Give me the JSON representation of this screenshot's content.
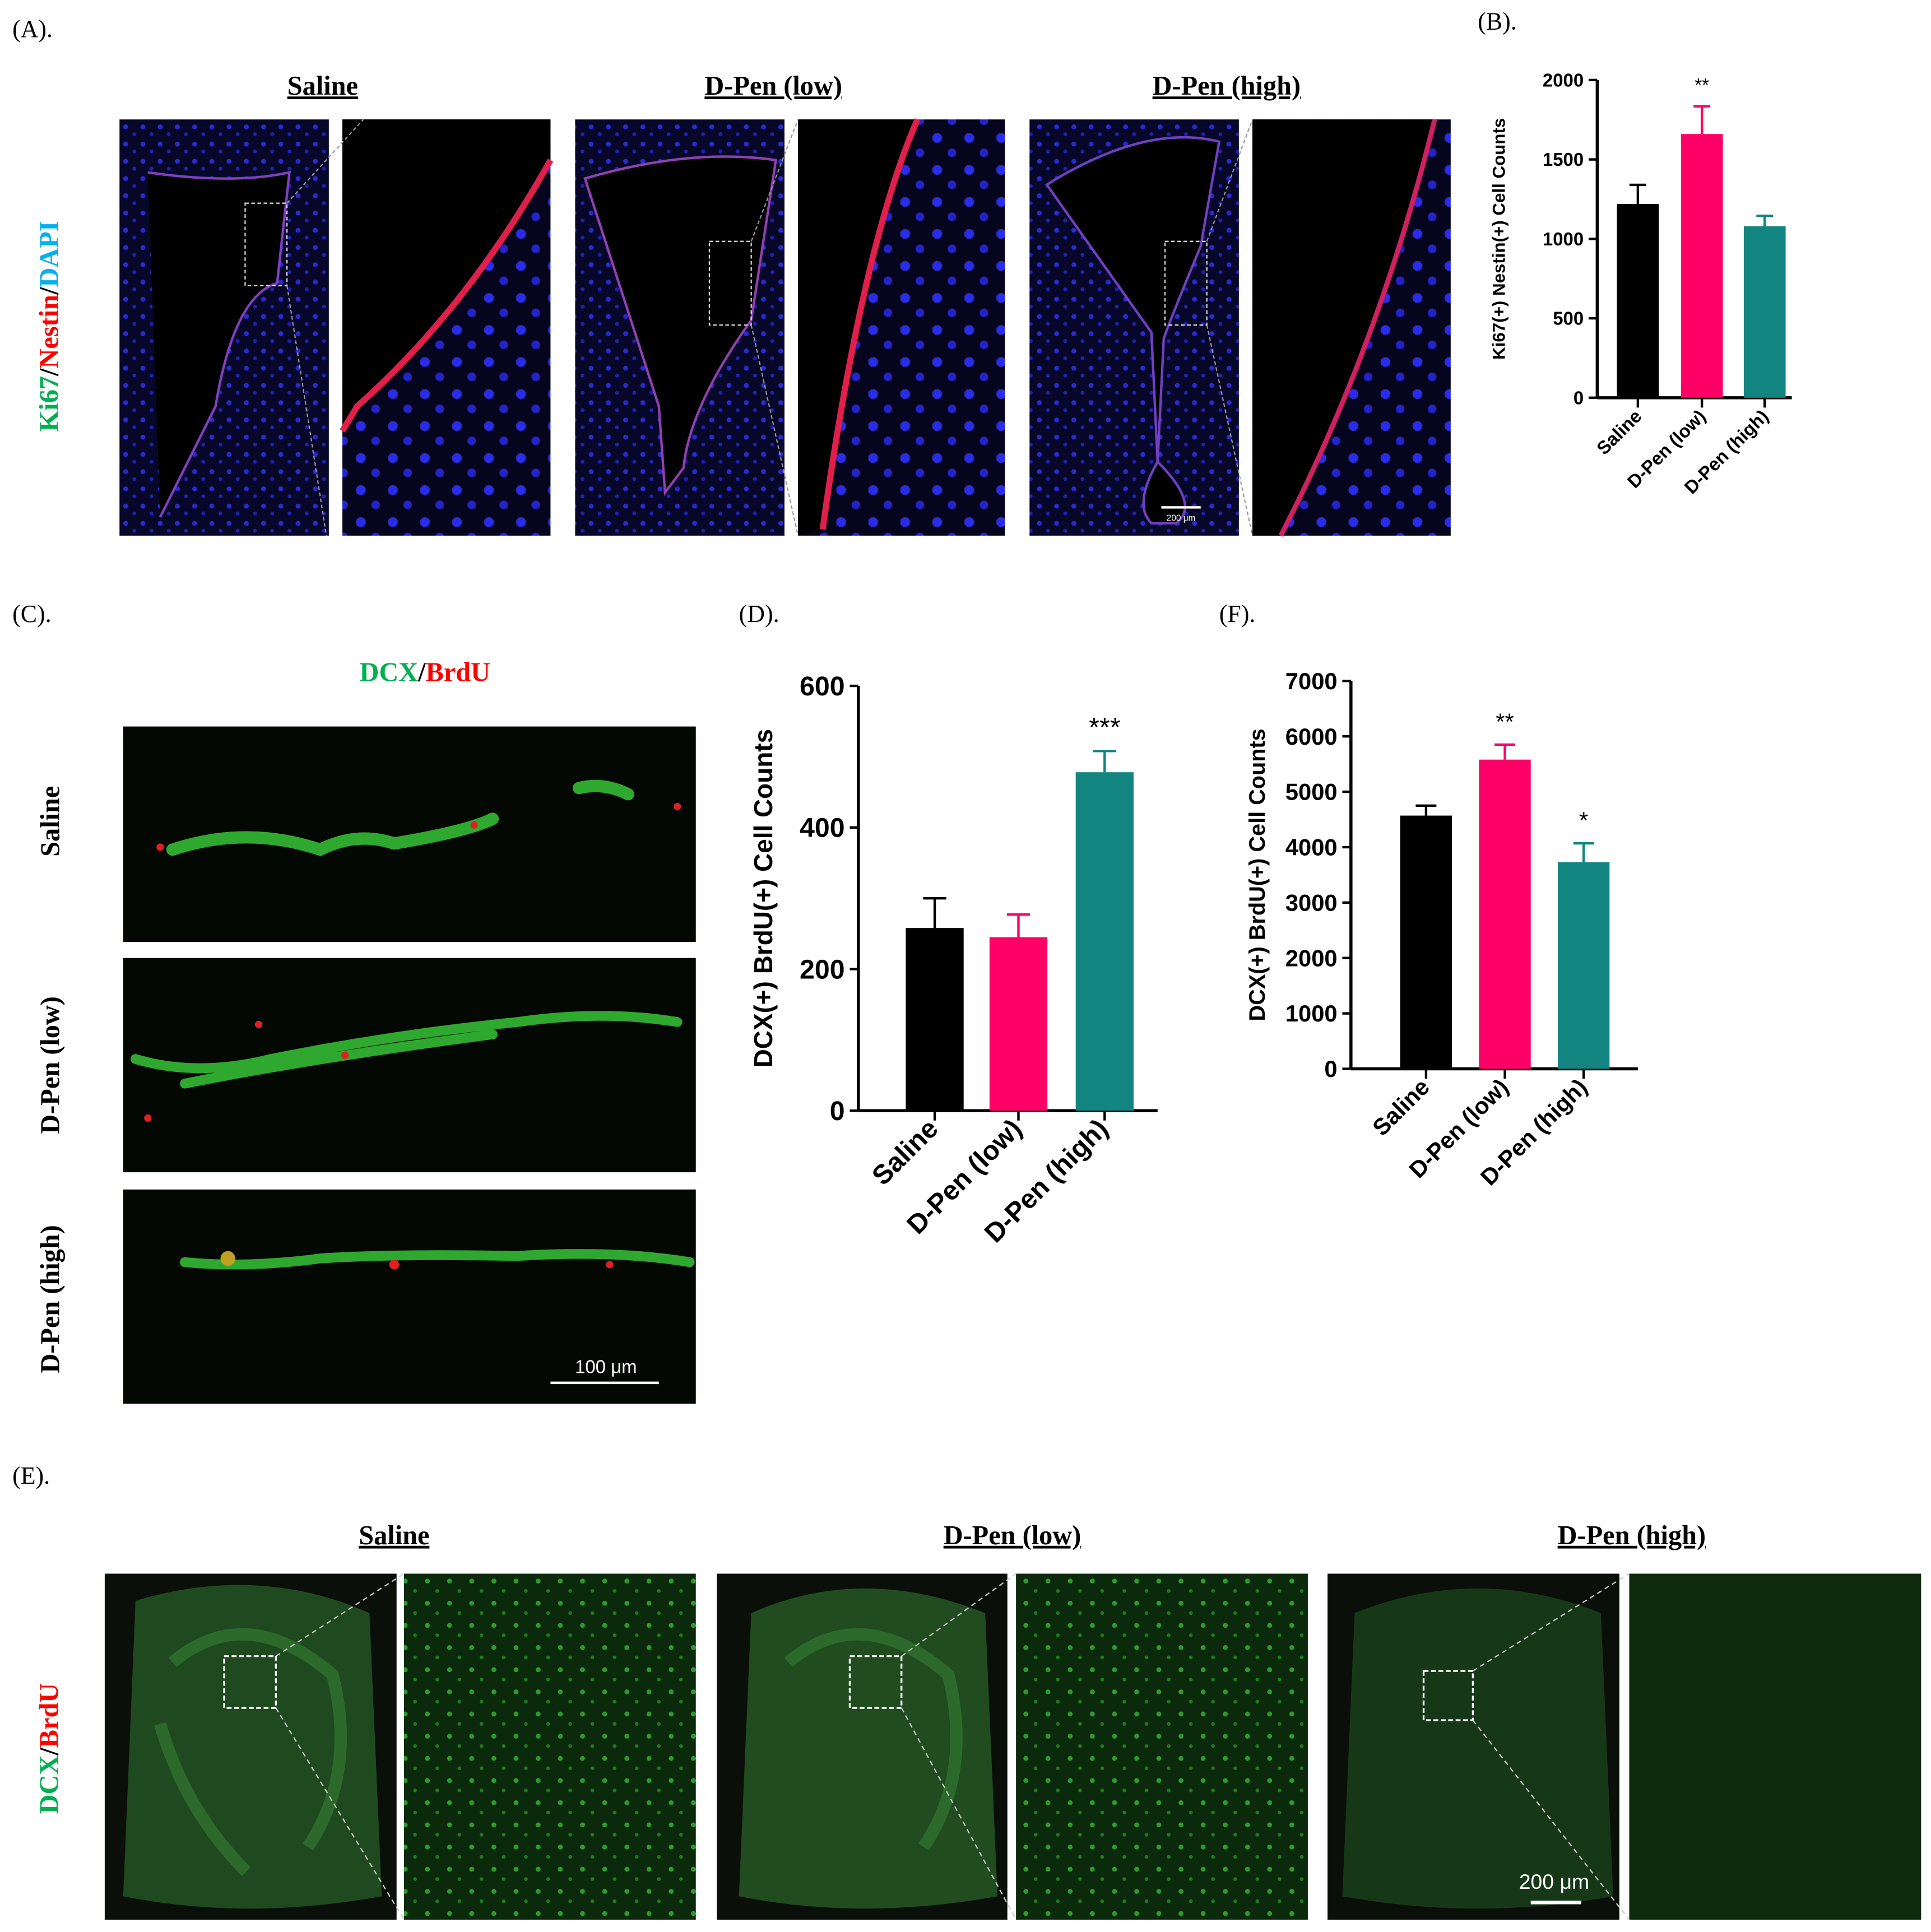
{
  "chart_data": [
    {
      "type": "bar",
      "y_label": "Ki67(+) Nestin(+) Cell Counts",
      "categories": [
        "Saline",
        "D-Pen (low)",
        "D-Pen (high)"
      ],
      "values": [
        1220,
        1660,
        1080
      ],
      "errors": [
        120,
        175,
        65
      ],
      "colors": [
        "#000000",
        "#ff0066",
        "#138580"
      ],
      "annotations": [
        null,
        "**",
        null
      ],
      "ylim": [
        0,
        2000
      ],
      "yticks": [
        0,
        500,
        1000,
        1500,
        2000
      ]
    },
    {
      "type": "bar",
      "y_label": "DCX(+) BrdU(+) Cell Counts",
      "categories": [
        "Saline",
        "D-Pen (low)",
        "D-Pen (high)"
      ],
      "values": [
        258,
        245,
        478
      ],
      "errors": [
        42,
        32,
        30
      ],
      "colors": [
        "#000000",
        "#ff0066",
        "#138580"
      ],
      "annotations": [
        null,
        null,
        "***"
      ],
      "ylim": [
        0,
        600
      ],
      "yticks": [
        0,
        200,
        400,
        600
      ]
    },
    {
      "type": "bar",
      "y_label": "DCX(+) BrdU(+) Cell  Counts",
      "categories": [
        "Saline",
        "D-Pen (low)",
        "D-Pen (high)"
      ],
      "values": [
        4570,
        5580,
        3730
      ],
      "errors": [
        180,
        270,
        340
      ],
      "colors": [
        "#000000",
        "#ff0066",
        "#138580"
      ],
      "annotations": [
        null,
        "**",
        "*"
      ],
      "ylim": [
        0,
        7000
      ],
      "yticks": [
        0,
        1000,
        2000,
        3000,
        4000,
        5000,
        6000,
        7000
      ]
    }
  ],
  "figure": {
    "panel_labels": [
      "(A).",
      "(B).",
      "(C).",
      "(D).",
      "(F).",
      "(E)."
    ],
    "a": {
      "columns": [
        "Saline",
        "D-Pen (low)",
        "D-Pen (high)"
      ],
      "stain": [
        "Ki67",
        "/",
        "Nestin",
        "/",
        "DAPI"
      ],
      "scale": "200 μm"
    },
    "c": {
      "stain": [
        "DCX",
        "/",
        "BrdU"
      ],
      "rows": [
        "Saline",
        "D-Pen (low)",
        "D-Pen (high)"
      ],
      "scale": "100 μm"
    },
    "e": {
      "columns": [
        "Saline",
        "D-Pen (low)",
        "D-Pen (high)"
      ],
      "stain": [
        "DCX",
        "/",
        "BrdU"
      ],
      "scale": "200 μm"
    }
  }
}
